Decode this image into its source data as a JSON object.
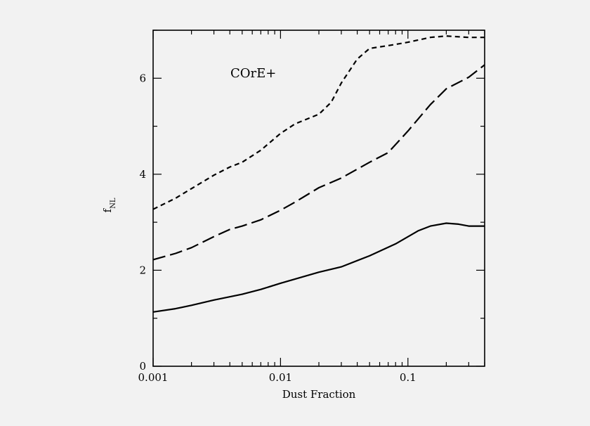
{
  "chart_data": {
    "type": "line",
    "x_scale": "log",
    "xlim": [
      0.001,
      0.4
    ],
    "ylim": [
      0,
      7
    ],
    "xlabel": "Dust Fraction",
    "ylabel": "f",
    "ylabel_subscript": "NL",
    "x_ticks": [
      {
        "value": 0.001,
        "label": "0.001"
      },
      {
        "value": 0.01,
        "label": "0.01"
      },
      {
        "value": 0.1,
        "label": "0.1"
      }
    ],
    "y_ticks": [
      {
        "value": 0,
        "label": "0"
      },
      {
        "value": 2,
        "label": "2"
      },
      {
        "value": 4,
        "label": "4"
      },
      {
        "value": 6,
        "label": "6"
      }
    ],
    "annotation": "COrE+",
    "grid": false,
    "series": [
      {
        "dash": "short-dash",
        "x": [
          0.001,
          0.0015,
          0.002,
          0.003,
          0.004,
          0.005,
          0.007,
          0.01,
          0.013,
          0.02,
          0.025,
          0.03,
          0.04,
          0.05,
          0.07,
          0.1,
          0.15,
          0.2,
          0.3,
          0.4
        ],
        "y": [
          3.27,
          3.5,
          3.7,
          3.98,
          4.15,
          4.25,
          4.5,
          4.85,
          5.05,
          5.25,
          5.5,
          5.9,
          6.4,
          6.62,
          6.68,
          6.75,
          6.85,
          6.88,
          6.85,
          6.85
        ]
      },
      {
        "dash": "long-dash",
        "x": [
          0.001,
          0.0015,
          0.002,
          0.003,
          0.004,
          0.005,
          0.007,
          0.01,
          0.013,
          0.02,
          0.03,
          0.05,
          0.07,
          0.1,
          0.15,
          0.2,
          0.3,
          0.4
        ],
        "y": [
          2.22,
          2.35,
          2.47,
          2.7,
          2.85,
          2.92,
          3.05,
          3.25,
          3.42,
          3.72,
          3.92,
          4.25,
          4.45,
          4.9,
          5.45,
          5.78,
          6.02,
          6.28
        ]
      },
      {
        "dash": "solid",
        "x": [
          0.001,
          0.0015,
          0.002,
          0.003,
          0.005,
          0.007,
          0.01,
          0.02,
          0.03,
          0.05,
          0.08,
          0.12,
          0.15,
          0.2,
          0.25,
          0.3,
          0.4
        ],
        "y": [
          1.13,
          1.2,
          1.27,
          1.38,
          1.5,
          1.6,
          1.73,
          1.96,
          2.07,
          2.3,
          2.55,
          2.82,
          2.92,
          2.98,
          2.96,
          2.92,
          2.92
        ]
      }
    ]
  }
}
